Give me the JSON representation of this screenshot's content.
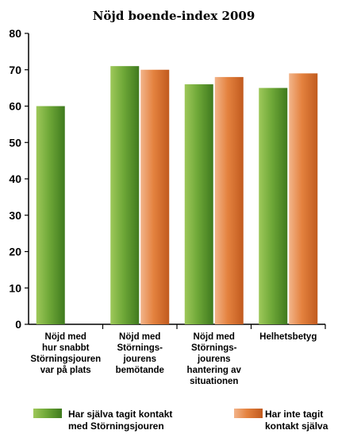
{
  "chart_data": {
    "type": "bar",
    "title": "Nöjd boende-index 2009",
    "xlabel": "",
    "ylabel": "",
    "ylim": [
      0,
      80
    ],
    "yticks": [
      0,
      10,
      20,
      30,
      40,
      50,
      60,
      70,
      80
    ],
    "grid": false,
    "legend_position": "bottom",
    "categories": [
      [
        "Nöjd med",
        "hur snabbt",
        "Störningsjouren",
        "var på plats"
      ],
      [
        "Nöjd med",
        "Störnings-",
        "jourens",
        "bemötande"
      ],
      [
        "Nöjd med",
        "Störnings-",
        "jourens",
        "hantering av",
        "situationen"
      ],
      [
        "Helhetsbetyg"
      ]
    ],
    "series": [
      {
        "name": [
          "Har själva tagit kontakt",
          "med Störningsjouren"
        ],
        "color": "#5f9a2c",
        "values": [
          60,
          71,
          66,
          65
        ]
      },
      {
        "name": [
          "Har inte tagit",
          "kontakt själva"
        ],
        "color": "#e07a3c",
        "values": [
          null,
          70,
          68,
          69
        ]
      }
    ]
  }
}
